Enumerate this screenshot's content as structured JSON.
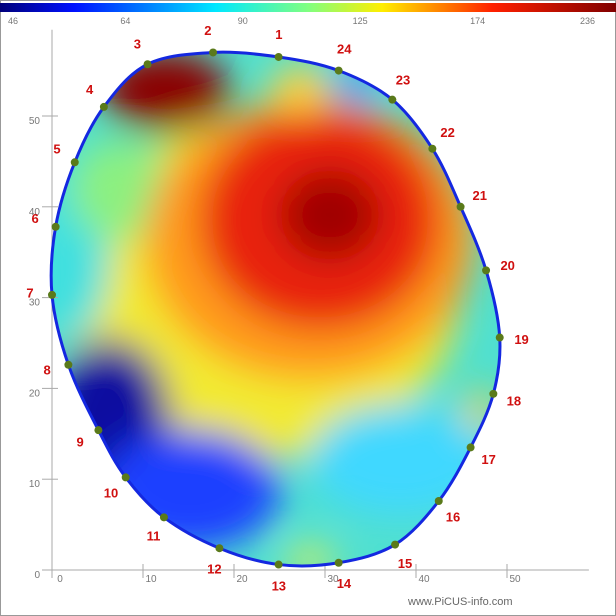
{
  "chart_data": {
    "type": "scatter",
    "categories": [
      "1",
      "2",
      "3",
      "4",
      "5",
      "6",
      "7",
      "8",
      "9",
      "10",
      "11",
      "12",
      "13",
      "14",
      "15",
      "16",
      "17",
      "18",
      "19",
      "20",
      "21",
      "22",
      "23",
      "24"
    ],
    "x": [
      24.9,
      17.7,
      10.5,
      5.7,
      2.5,
      0.4,
      0,
      1.8,
      5.1,
      8.1,
      12.3,
      18.4,
      24.9,
      31.5,
      37.7,
      42.5,
      46.0,
      48.5,
      49.2,
      47.7,
      44.9,
      41.8,
      37.4,
      31.5
    ],
    "values": [
      56.5,
      57.0,
      55.7,
      51.0,
      44.9,
      37.8,
      30.3,
      22.6,
      15.4,
      10.2,
      5.8,
      2.4,
      0.6,
      0.8,
      2.8,
      7.6,
      13.5,
      19.4,
      25.6,
      33.0,
      40.0,
      46.4,
      51.8,
      55.0
    ],
    "color": "#5a7a1a",
    "outline_color": "#1428e0",
    "label_color": "#d01010",
    "xlim": [
      0,
      59
    ],
    "ylim": [
      0,
      59.5
    ],
    "xticks": [
      0,
      10,
      20,
      30,
      40,
      50
    ],
    "yticks": [
      0,
      10,
      20,
      30,
      40,
      50
    ],
    "colorbar_ticks": [
      46,
      64,
      90,
      125,
      174,
      236
    ],
    "watermark": "www.PiCUS-info.com"
  }
}
